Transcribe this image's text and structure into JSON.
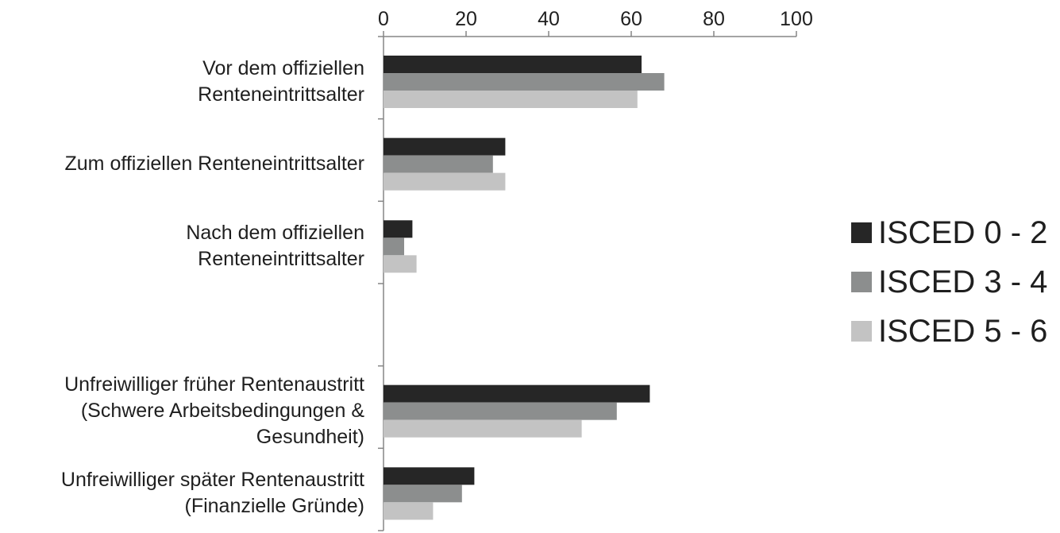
{
  "chart_data": {
    "type": "bar",
    "orientation": "horizontal",
    "title": "",
    "xlabel": "",
    "ylabel": "",
    "xlim": [
      0,
      100
    ],
    "x_ticks": [
      "0",
      "20",
      "40",
      "60",
      "80",
      "100"
    ],
    "x_axis_position": "top",
    "grid": false,
    "legend_position": "right",
    "categories": [
      [
        "Vor dem offiziellen",
        "Renteneintrittsalter"
      ],
      [
        "Zum offiziellen Renteneintrittsalter"
      ],
      [
        "Nach dem offiziellen",
        "Renteneintrittsalter"
      ],
      [],
      [
        "Unfreiwilliger früher Rentenaustritt",
        "(Schwere Arbeitsbedingungen &",
        "Gesundheit)"
      ],
      [
        "Unfreiwilliger später Rentenaustritt",
        "(Finanzielle Gründe)"
      ]
    ],
    "series": [
      {
        "name": "ISCED 0 - 2",
        "color": "#262626",
        "values": [
          62.5,
          29.5,
          7,
          null,
          64.5,
          22
        ]
      },
      {
        "name": "ISCED 3 - 4",
        "color": "#8c8e8e",
        "values": [
          68,
          26.5,
          5,
          null,
          56.5,
          19
        ]
      },
      {
        "name": "ISCED 5 - 6",
        "color": "#c3c3c3",
        "values": [
          61.5,
          29.5,
          8,
          null,
          48,
          12
        ]
      }
    ]
  }
}
